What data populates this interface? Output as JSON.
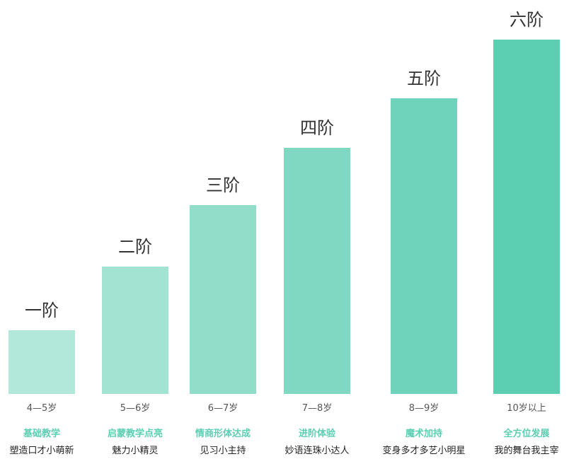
{
  "chart_data": {
    "type": "bar",
    "categories": [
      "一阶",
      "二阶",
      "三阶",
      "四阶",
      "五阶",
      "六阶"
    ],
    "values": [
      1,
      2,
      3,
      4,
      5,
      6
    ],
    "ylim": [
      0,
      6
    ],
    "grid": false,
    "ages": [
      "4—5岁",
      "5—6岁",
      "6—7岁",
      "7—8岁",
      "8—9岁",
      "10岁以上"
    ],
    "stages": [
      "基础教学",
      "启蒙教学点亮",
      "情商形体达成",
      "进阶体验",
      "魔术加持",
      "全方位发展"
    ],
    "slogans": [
      "塑造口才小萌新",
      "魅力小精灵",
      "见习小主持",
      "妙语连珠小达人",
      "变身多才多艺小明星",
      "我的舞台我主宰"
    ],
    "colors": [
      "#b2e8d9",
      "#a2e3d2",
      "#91ddca",
      "#80d8c3",
      "#6fd3bb",
      "#5ccfb3"
    ]
  }
}
